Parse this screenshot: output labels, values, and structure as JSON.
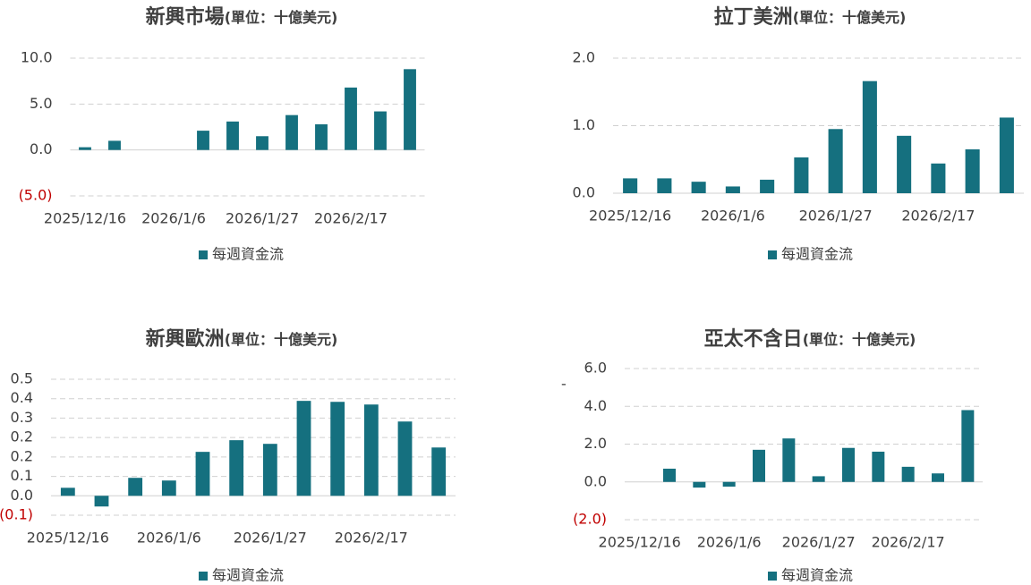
{
  "chart_data": [
    {
      "type": "bar",
      "title": "新興市場",
      "subtitle": "(單位：十億美元)",
      "categories": [
        "2025/12/16",
        null,
        null,
        "2026/1/6",
        null,
        null,
        "2026/1/27",
        null,
        null,
        "2026/2/17",
        null,
        null
      ],
      "series": [
        {
          "name": "每週資金流",
          "color": "#15707f",
          "values": [
            0.3,
            1.0,
            0,
            0,
            2.1,
            3.1,
            1.5,
            3.8,
            2.8,
            6.8,
            4.2,
            8.8
          ]
        }
      ],
      "ylim": [
        -5,
        10
      ],
      "yticks": [
        {
          "value": -5,
          "label": "(5.0)"
        },
        {
          "value": 0,
          "label": "0.0"
        },
        {
          "value": 5,
          "label": "5.0"
        },
        {
          "value": 10,
          "label": "10.0"
        }
      ],
      "grid": true,
      "negative_tick_color": "#c00000",
      "legend": "bottom"
    },
    {
      "type": "bar",
      "title": "拉丁美洲",
      "subtitle": "(單位：十億美元)",
      "categories": [
        "2025/12/16",
        null,
        null,
        "2026/1/6",
        null,
        null,
        "2026/1/27",
        null,
        null,
        "2026/2/17",
        null,
        null
      ],
      "series": [
        {
          "name": "每週資金流",
          "color": "#15707f",
          "values": [
            0.22,
            0.22,
            0.17,
            0.1,
            0.2,
            0.53,
            0.95,
            1.66,
            0.85,
            0.44,
            0.65,
            1.12
          ]
        }
      ],
      "ylim": [
        0,
        2
      ],
      "yticks": [
        {
          "value": 0,
          "label": "0.0"
        },
        {
          "value": 1,
          "label": "1.0"
        },
        {
          "value": 2,
          "label": "2.0"
        }
      ],
      "grid": true,
      "negative_tick_color": "#c00000",
      "legend": "bottom"
    },
    {
      "type": "bar",
      "title": "新興歐洲",
      "subtitle": "(單位：十億美元)",
      "categories": [
        "2025/12/16",
        null,
        null,
        "2026/1/6",
        null,
        null,
        "2026/1/27",
        null,
        null,
        "2026/2/17",
        null,
        null
      ],
      "series": [
        {
          "name": "每週資金流",
          "color": "#15707f",
          "values": [
            0.033,
            -0.044,
            0.074,
            0.063,
            0.181,
            0.229,
            0.214,
            0.391,
            0.387,
            0.376,
            0.306,
            0.199
          ]
        }
      ],
      "ylim": [
        -0.08,
        0.48
      ],
      "yticks": [
        {
          "value": -0.08,
          "label": "(0.1)"
        },
        {
          "value": 0,
          "label": "0.0"
        },
        {
          "value": 0.08,
          "label": "0.1"
        },
        {
          "value": 0.16,
          "label": "0.2"
        },
        {
          "value": 0.24,
          "label": "0.2"
        },
        {
          "value": 0.32,
          "label": "0.3"
        },
        {
          "value": 0.4,
          "label": "0.4"
        },
        {
          "value": 0.48,
          "label": "0.5"
        }
      ],
      "grid": true,
      "negative_tick_color": "#c00000",
      "legend": "bottom"
    },
    {
      "type": "bar",
      "title": "亞太不含日",
      "subtitle": "(單位：十億美元)",
      "annotation": "-",
      "categories": [
        "2025/12/16",
        null,
        null,
        "2026/1/6",
        null,
        null,
        "2026/1/27",
        null,
        null,
        "2026/2/17",
        null,
        null
      ],
      "series": [
        {
          "name": "每週資金流",
          "color": "#15707f",
          "values": [
            0,
            0.7,
            -0.3,
            -0.25,
            1.7,
            2.3,
            0.3,
            1.8,
            1.6,
            0.8,
            0.45,
            3.8
          ]
        }
      ],
      "ylim": [
        -2,
        6
      ],
      "yticks": [
        {
          "value": -2,
          "label": "(2.0)"
        },
        {
          "value": 0,
          "label": "0.0"
        },
        {
          "value": 2,
          "label": "2.0"
        },
        {
          "value": 4,
          "label": "4.0"
        },
        {
          "value": 6,
          "label": "6.0"
        }
      ],
      "grid": true,
      "negative_tick_color": "#c00000",
      "legend": "bottom"
    }
  ]
}
